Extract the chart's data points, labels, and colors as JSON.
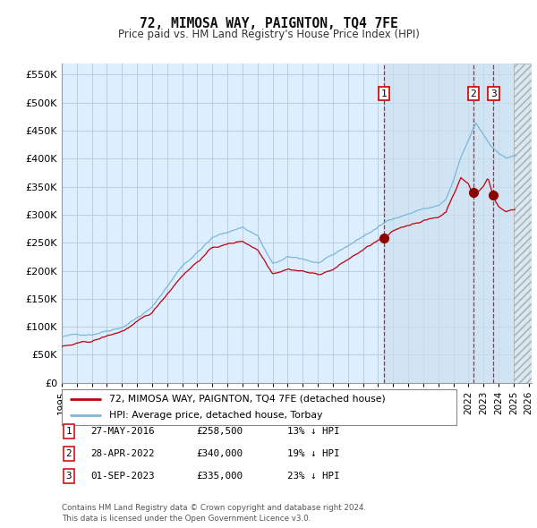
{
  "title": "72, MIMOSA WAY, PAIGNTON, TQ4 7FE",
  "subtitle": "Price paid vs. HM Land Registry's House Price Index (HPI)",
  "ylabel_ticks": [
    "£0",
    "£50K",
    "£100K",
    "£150K",
    "£200K",
    "£250K",
    "£300K",
    "£350K",
    "£400K",
    "£450K",
    "£500K",
    "£550K"
  ],
  "ytick_values": [
    0,
    50000,
    100000,
    150000,
    200000,
    250000,
    300000,
    350000,
    400000,
    450000,
    500000,
    550000
  ],
  "ylim": [
    0,
    570000
  ],
  "xlim_start": 1995.0,
  "xlim_end": 2026.2,
  "hpi_color": "#7ab8d8",
  "price_color": "#c0000a",
  "background_color": "#ddeeff",
  "grid_color": "#b8c8dc",
  "blue_shade_start": 2016.4,
  "blue_shade_end": 2025.0,
  "hatch_start": 2025.0,
  "sale_points": [
    {
      "year": 2016.41,
      "price": 258500,
      "label": "1"
    },
    {
      "year": 2022.33,
      "price": 340000,
      "label": "2"
    },
    {
      "year": 2023.67,
      "price": 335000,
      "label": "3"
    }
  ],
  "annotations": [
    {
      "num": "1",
      "date": "27-MAY-2016",
      "price": "£258,500",
      "pct": "13% ↓ HPI"
    },
    {
      "num": "2",
      "date": "28-APR-2022",
      "price": "£340,000",
      "pct": "19% ↓ HPI"
    },
    {
      "num": "3",
      "date": "01-SEP-2023",
      "price": "£335,000",
      "pct": "23% ↓ HPI"
    }
  ],
  "legend_line1": "72, MIMOSA WAY, PAIGNTON, TQ4 7FE (detached house)",
  "legend_line2": "HPI: Average price, detached house, Torbay",
  "footer": "Contains HM Land Registry data © Crown copyright and database right 2024.\nThis data is licensed under the Open Government Licence v3.0."
}
